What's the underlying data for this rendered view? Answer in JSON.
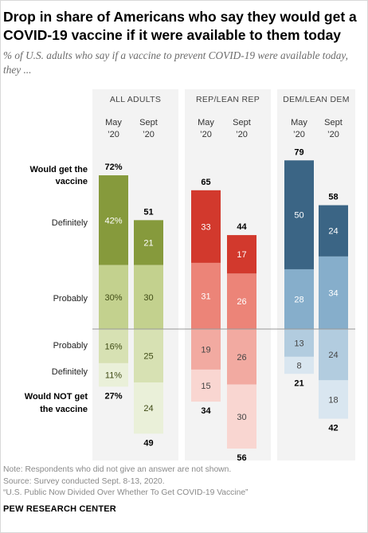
{
  "title": "Drop in share of Americans who say they would get a COVID-19 vaccine if it were available to them today",
  "subtitle": "% of U.S. adults who say if a vaccine to prevent COVID-19 were available today, they ...",
  "notes": [
    "Note: Respondents who did not give an answer are not shown.",
    "Source: Survey conducted Sept. 8-13, 2020.",
    "“U.S. Public Now Divided Over Whether To Get COVID-19 Vaccine”"
  ],
  "brand": "PEW RESEARCH CENTER",
  "chart_data": {
    "type": "bar",
    "row_labels": {
      "would_get": [
        "Would get the",
        "vaccine"
      ],
      "definitely_pos": "Definitely",
      "probably_pos": "Probably",
      "probably_neg": "Probably",
      "definitely_neg": "Definitely",
      "would_not": [
        "Would NOT get",
        "the vaccine"
      ]
    },
    "groups": [
      {
        "name": "ALL ADULTS",
        "colors": {
          "definitely_pos": "#869a3c",
          "probably_pos": "#c3d18e",
          "probably_neg": "#d7e1b3",
          "definitely_neg": "#eaf0d9"
        },
        "columns": [
          {
            "label": [
              "May",
              "’20"
            ],
            "would_get": 72,
            "definitely": 42,
            "probably": 30,
            "probably_not": 16,
            "definitely_not": 11,
            "would_not": 27,
            "labels": {
              "would_get": "72%",
              "definitely": "42%",
              "probably": "30%",
              "probably_not": "16%",
              "definitely_not": "11%",
              "would_not": "27%"
            }
          },
          {
            "label": [
              "Sept",
              "’20"
            ],
            "would_get": 51,
            "definitely": 21,
            "probably": 30,
            "probably_not": 25,
            "definitely_not": 24,
            "would_not": 49,
            "labels": {
              "would_get": "51",
              "definitely": "21",
              "probably": "30",
              "probably_not": "25",
              "definitely_not": "24",
              "would_not": "49"
            }
          }
        ]
      },
      {
        "name": "REP/LEAN REP",
        "colors": {
          "definitely_pos": "#d2392d",
          "probably_pos": "#ec8478",
          "probably_neg": "#f2aaa1",
          "definitely_neg": "#f9d6d1"
        },
        "columns": [
          {
            "label": [
              "May",
              "’20"
            ],
            "would_get": 65,
            "definitely": 33,
            "probably": 31,
            "probably_not": 19,
            "definitely_not": 15,
            "would_not": 34,
            "labels": {
              "would_get": "65",
              "definitely": "33",
              "probably": "31",
              "probably_not": "19",
              "definitely_not": "15",
              "would_not": "34"
            }
          },
          {
            "label": [
              "Sept",
              "’20"
            ],
            "would_get": 44,
            "definitely": 17,
            "probably": 26,
            "probably_not": 26,
            "definitely_not": 30,
            "would_not": 56,
            "labels": {
              "would_get": "44",
              "definitely": "17",
              "probably": "26",
              "probably_not": "26",
              "definitely_not": "30",
              "would_not": "56"
            }
          }
        ]
      },
      {
        "name": "DEM/LEAN DEM",
        "colors": {
          "definitely_pos": "#3b6585",
          "probably_pos": "#86aecb",
          "probably_neg": "#b2ccdf",
          "definitely_neg": "#d9e6f0"
        },
        "columns": [
          {
            "label": [
              "May",
              "’20"
            ],
            "would_get": 79,
            "definitely": 50,
            "probably": 28,
            "probably_not": 13,
            "definitely_not": 8,
            "would_not": 21,
            "labels": {
              "would_get": "79",
              "definitely": "50",
              "probably": "28",
              "probably_not": "13",
              "definitely_not": "8",
              "would_not": "21"
            }
          },
          {
            "label": [
              "Sept",
              "’20"
            ],
            "would_get": 58,
            "definitely": 24,
            "probably": 34,
            "probably_not": 24,
            "definitely_not": 18,
            "would_not": 42,
            "labels": {
              "would_get": "58",
              "definitely": "24",
              "probably": "34",
              "probably_not": "24",
              "definitely_not": "18",
              "would_not": "42"
            }
          }
        ]
      }
    ]
  }
}
